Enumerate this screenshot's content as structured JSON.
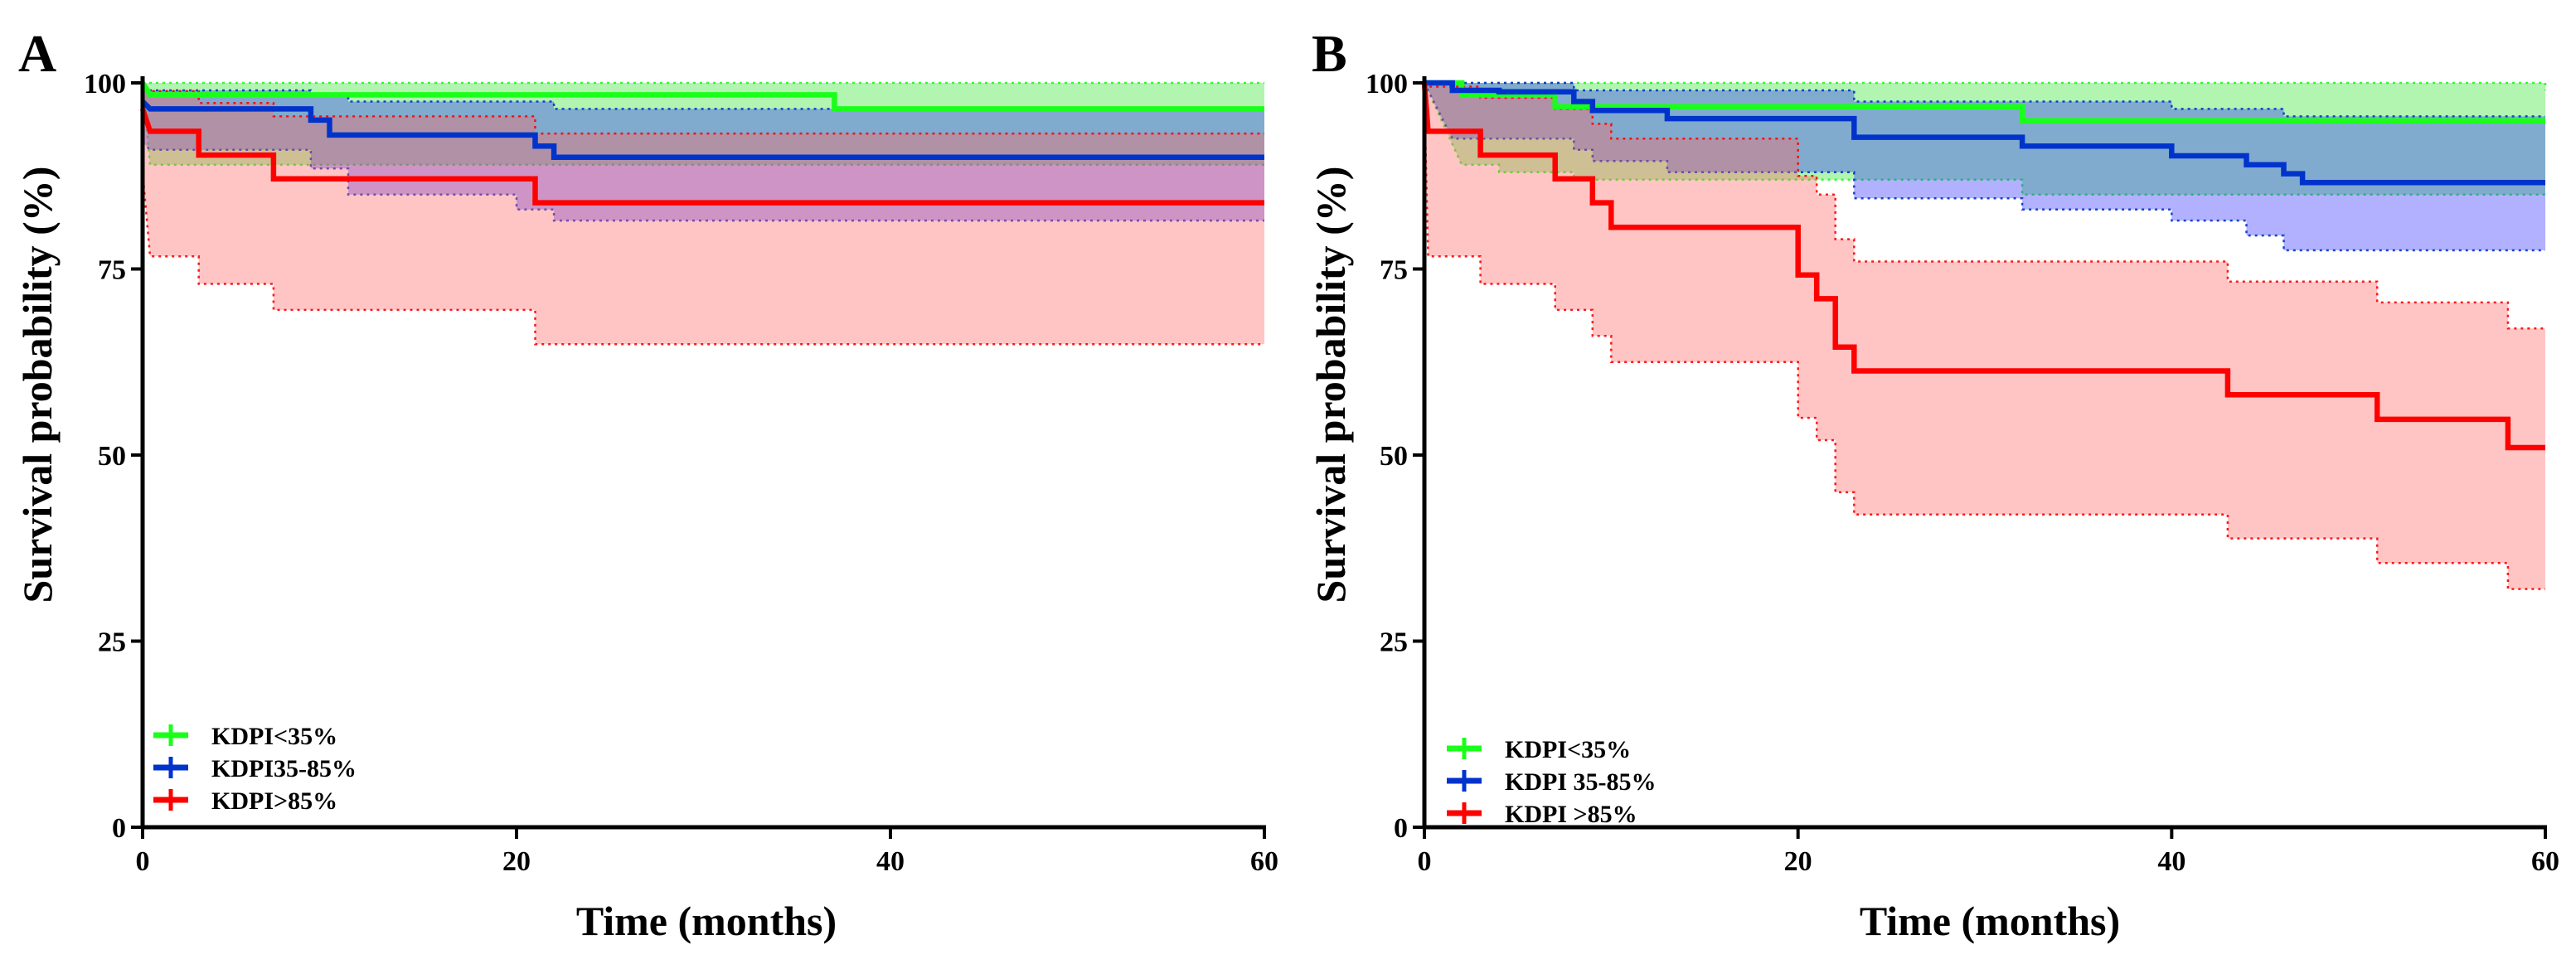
{
  "figure": {
    "panels": [
      "A",
      "B"
    ]
  },
  "chart_data": [
    {
      "panel": "A",
      "type": "line",
      "subtype": "kaplan-meier step with confidence bands",
      "title": "",
      "xlabel": "Time (months)",
      "ylabel": "Survival probability (%)",
      "xlim": [
        0,
        60
      ],
      "ylim": [
        0,
        100
      ],
      "xticks": [
        0,
        20,
        40,
        60
      ],
      "yticks": [
        0,
        25,
        50,
        75,
        100
      ],
      "legend_position": "bottom-left",
      "series": [
        {
          "name": "KDPI<35%",
          "color": "#1aff1a",
          "band_color": "#33e633",
          "steps": [
            [
              0,
              100
            ],
            [
              0.4,
              98.4
            ],
            [
              37,
              98.4
            ],
            [
              37,
              96.5
            ],
            [
              60,
              96.5
            ]
          ],
          "lower": [
            [
              0,
              100
            ],
            [
              0.4,
              89
            ],
            [
              60,
              89
            ]
          ],
          "upper": [
            [
              0,
              100
            ],
            [
              60,
              100
            ]
          ]
        },
        {
          "name": "KDPI35-85%",
          "color": "#0033cc",
          "band_color": "#3333ff",
          "steps": [
            [
              0,
              97.5
            ],
            [
              0.4,
              96.5
            ],
            [
              9,
              96.5
            ],
            [
              9,
              95
            ],
            [
              10,
              95
            ],
            [
              10,
              93
            ],
            [
              21,
              93
            ],
            [
              21,
              91.5
            ],
            [
              22,
              91.5
            ],
            [
              22,
              90
            ],
            [
              60,
              90
            ]
          ],
          "lower": [
            [
              0,
              92
            ],
            [
              0.4,
              91
            ],
            [
              9,
              91
            ],
            [
              9,
              88.5
            ],
            [
              11,
              88.5
            ],
            [
              11,
              85
            ],
            [
              20,
              85
            ],
            [
              20,
              83
            ],
            [
              22,
              83
            ],
            [
              22,
              81.5
            ],
            [
              60,
              81.5
            ]
          ],
          "upper": [
            [
              0,
              99
            ],
            [
              9,
              99
            ],
            [
              9,
              98.5
            ],
            [
              11,
              98.5
            ],
            [
              11,
              97.5
            ],
            [
              22,
              97.5
            ],
            [
              22,
              96.5
            ],
            [
              60,
              96.5
            ]
          ]
        },
        {
          "name": "KDPI>85%",
          "color": "#ff0000",
          "band_color": "#ff6666",
          "steps": [
            [
              0,
              96.5
            ],
            [
              0.4,
              93.5
            ],
            [
              3,
              93.5
            ],
            [
              3,
              90.3
            ],
            [
              7,
              90.3
            ],
            [
              7,
              87.1
            ],
            [
              21,
              87.1
            ],
            [
              21,
              83.9
            ],
            [
              60,
              83.9
            ]
          ],
          "lower": [
            [
              0,
              88
            ],
            [
              0.4,
              76.7
            ],
            [
              3,
              76.7
            ],
            [
              3,
              73
            ],
            [
              7,
              73
            ],
            [
              7,
              69.5
            ],
            [
              21,
              69.5
            ],
            [
              21,
              64.9
            ],
            [
              60,
              64.9
            ]
          ],
          "upper": [
            [
              0,
              100
            ],
            [
              0.4,
              98.9
            ],
            [
              3,
              98.9
            ],
            [
              3,
              97.3
            ],
            [
              7,
              97.3
            ],
            [
              7,
              95.5
            ],
            [
              21,
              95.5
            ],
            [
              21,
              93.2
            ],
            [
              60,
              93.2
            ]
          ]
        }
      ]
    },
    {
      "panel": "B",
      "type": "line",
      "subtype": "kaplan-meier step with confidence bands",
      "title": "",
      "xlabel": "Time (months)",
      "ylabel": "Survival probability (%)",
      "xlim": [
        0,
        60
      ],
      "ylim": [
        0,
        100
      ],
      "xticks": [
        0,
        20,
        40,
        60
      ],
      "yticks": [
        0,
        25,
        50,
        75,
        100
      ],
      "legend_position": "bottom-left",
      "series": [
        {
          "name": "KDPI<35%",
          "color": "#1aff1a",
          "band_color": "#33e633",
          "steps": [
            [
              0,
              100
            ],
            [
              2,
              100
            ],
            [
              2,
              98.4
            ],
            [
              7,
              98.4
            ],
            [
              7,
              96.8
            ],
            [
              32,
              96.8
            ],
            [
              32,
              94.9
            ],
            [
              60,
              94.9
            ]
          ],
          "lower": [
            [
              0,
              100
            ],
            [
              2,
              89
            ],
            [
              4,
              89
            ],
            [
              4,
              88
            ],
            [
              8,
              88
            ],
            [
              8,
              87
            ],
            [
              32,
              87
            ],
            [
              32,
              85
            ],
            [
              60,
              85
            ]
          ],
          "upper": [
            [
              0,
              100
            ],
            [
              60,
              100
            ],
            [
              60,
              99
            ]
          ]
        },
        {
          "name": "KDPI 35-85%",
          "color": "#0033cc",
          "band_color": "#3333ff",
          "steps": [
            [
              0,
              100
            ],
            [
              1.5,
              100
            ],
            [
              1.5,
              99
            ],
            [
              4,
              99
            ],
            [
              4,
              98.8
            ],
            [
              8,
              98.8
            ],
            [
              8,
              97.5
            ],
            [
              9,
              97.5
            ],
            [
              9,
              96.3
            ],
            [
              13,
              96.3
            ],
            [
              13,
              95.2
            ],
            [
              23,
              95.2
            ],
            [
              23,
              92.7
            ],
            [
              32,
              92.7
            ],
            [
              32,
              91.5
            ],
            [
              40,
              91.5
            ],
            [
              40,
              90.2
            ],
            [
              44,
              90.2
            ],
            [
              44,
              89
            ],
            [
              46,
              89
            ],
            [
              46,
              87.8
            ],
            [
              47,
              87.8
            ],
            [
              47,
              86.6
            ],
            [
              60,
              86.6
            ]
          ],
          "lower": [
            [
              0,
              100
            ],
            [
              1.5,
              92.5
            ],
            [
              8,
              92.5
            ],
            [
              8,
              91
            ],
            [
              9,
              91
            ],
            [
              9,
              89.5
            ],
            [
              13,
              89.5
            ],
            [
              13,
              88
            ],
            [
              23,
              88
            ],
            [
              23,
              84.5
            ],
            [
              32,
              84.5
            ],
            [
              32,
              83
            ],
            [
              40,
              83
            ],
            [
              40,
              81.5
            ],
            [
              44,
              81.5
            ],
            [
              44,
              79.5
            ],
            [
              46,
              79.5
            ],
            [
              46,
              77.5
            ],
            [
              60,
              77.5
            ]
          ],
          "upper": [
            [
              0,
              100
            ],
            [
              8,
              100
            ],
            [
              8,
              99
            ],
            [
              23,
              99
            ],
            [
              23,
              97.5
            ],
            [
              40,
              97.5
            ],
            [
              40,
              96.5
            ],
            [
              46,
              96.5
            ],
            [
              46,
              95.5
            ],
            [
              60,
              95.5
            ]
          ]
        },
        {
          "name": "KDPI >85%",
          "color": "#ff0000",
          "band_color": "#ff6666",
          "steps": [
            [
              0,
              100
            ],
            [
              0.2,
              93.5
            ],
            [
              3,
              93.5
            ],
            [
              3,
              90.3
            ],
            [
              7,
              90.3
            ],
            [
              7,
              87.1
            ],
            [
              9,
              87.1
            ],
            [
              9,
              83.9
            ],
            [
              10,
              83.9
            ],
            [
              10,
              80.6
            ],
            [
              20,
              80.6
            ],
            [
              20,
              74.2
            ],
            [
              21,
              74.2
            ],
            [
              21,
              71
            ],
            [
              22,
              71
            ],
            [
              22,
              64.5
            ],
            [
              23,
              64.5
            ],
            [
              23,
              61.3
            ],
            [
              43,
              61.3
            ],
            [
              43,
              58.1
            ],
            [
              51,
              58.1
            ],
            [
              51,
              54.8
            ],
            [
              58,
              54.8
            ],
            [
              58,
              51
            ],
            [
              60,
              51
            ]
          ],
          "lower": [
            [
              0,
              98.5
            ],
            [
              0.2,
              76.7
            ],
            [
              3,
              76.7
            ],
            [
              3,
              73
            ],
            [
              7,
              73
            ],
            [
              7,
              69.5
            ],
            [
              9,
              69.5
            ],
            [
              9,
              66
            ],
            [
              10,
              66
            ],
            [
              10,
              62.5
            ],
            [
              20,
              62.5
            ],
            [
              20,
              55
            ],
            [
              21,
              55
            ],
            [
              21,
              52
            ],
            [
              22,
              52
            ],
            [
              22,
              45
            ],
            [
              23,
              45
            ],
            [
              23,
              42
            ],
            [
              43,
              42
            ],
            [
              43,
              38.8
            ],
            [
              51,
              38.8
            ],
            [
              51,
              35.5
            ],
            [
              58,
              35.5
            ],
            [
              58,
              32
            ],
            [
              60,
              32
            ]
          ],
          "upper": [
            [
              0,
              100
            ],
            [
              0.2,
              99.5
            ],
            [
              3,
              99.5
            ],
            [
              3,
              98
            ],
            [
              7,
              98
            ],
            [
              7,
              96.5
            ],
            [
              9,
              96.5
            ],
            [
              9,
              94.5
            ],
            [
              10,
              94.5
            ],
            [
              10,
              92.5
            ],
            [
              20,
              92.5
            ],
            [
              20,
              87.5
            ],
            [
              21,
              87.5
            ],
            [
              21,
              85
            ],
            [
              22,
              85
            ],
            [
              22,
              79
            ],
            [
              23,
              79
            ],
            [
              23,
              76
            ],
            [
              43,
              76
            ],
            [
              43,
              73.3
            ],
            [
              51,
              73.3
            ],
            [
              51,
              70.5
            ],
            [
              58,
              70.5
            ],
            [
              58,
              67
            ],
            [
              60,
              67
            ]
          ]
        }
      ]
    }
  ]
}
